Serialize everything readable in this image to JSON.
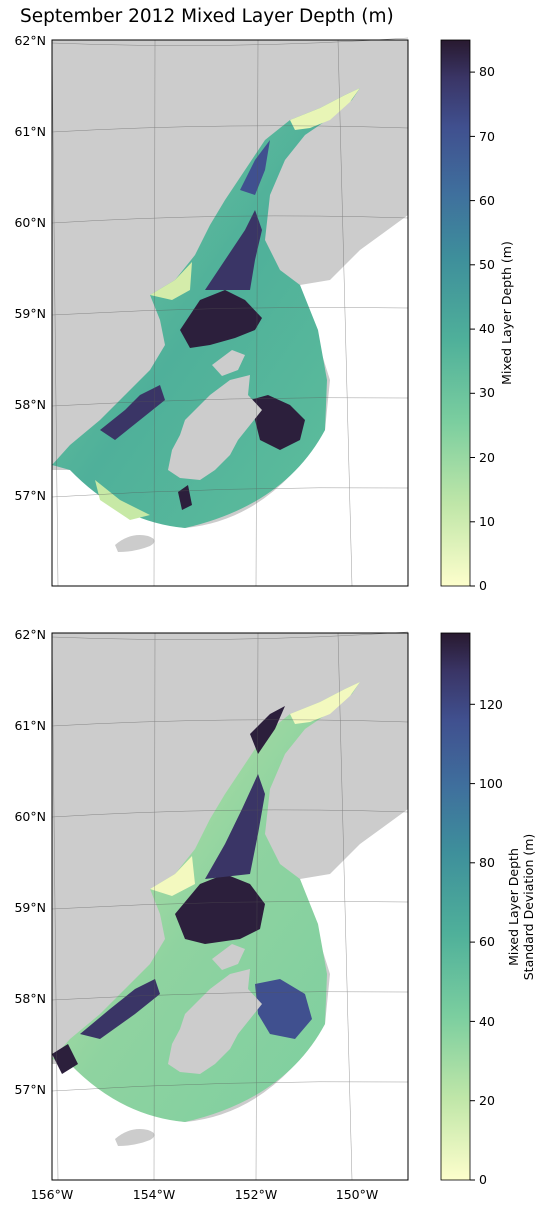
{
  "title": "September 2012 Mixed Layer Depth (m)",
  "colors": {
    "land": "#cccccc",
    "grid": "#555555",
    "frame": "#000000"
  },
  "colormap": "deep (yellow-green-blue-dark purple)",
  "lat_labels": [
    "62°N",
    "61°N",
    "60°N",
    "59°N",
    "58°N",
    "57°N"
  ],
  "lon_labels": [
    "156°W",
    "154°W",
    "152°W",
    "150°W"
  ],
  "panels": [
    {
      "id": "mean",
      "colorbar": {
        "label": "Mixed Layer Depth (m)",
        "range": [
          0,
          85
        ],
        "ticks": [
          "0",
          "10",
          "20",
          "30",
          "40",
          "50",
          "60",
          "70",
          "80"
        ],
        "tick_values": [
          0,
          10,
          20,
          30,
          40,
          50,
          60,
          70,
          80
        ]
      }
    },
    {
      "id": "std",
      "colorbar": {
        "label_line1": "Mixed Layer Depth",
        "label_line2": "Standard Deviation (m)",
        "range": [
          0,
          138
        ],
        "ticks": [
          "0",
          "20",
          "40",
          "60",
          "80",
          "100",
          "120"
        ],
        "tick_values": [
          0,
          20,
          40,
          60,
          80,
          100,
          120
        ]
      }
    }
  ]
}
